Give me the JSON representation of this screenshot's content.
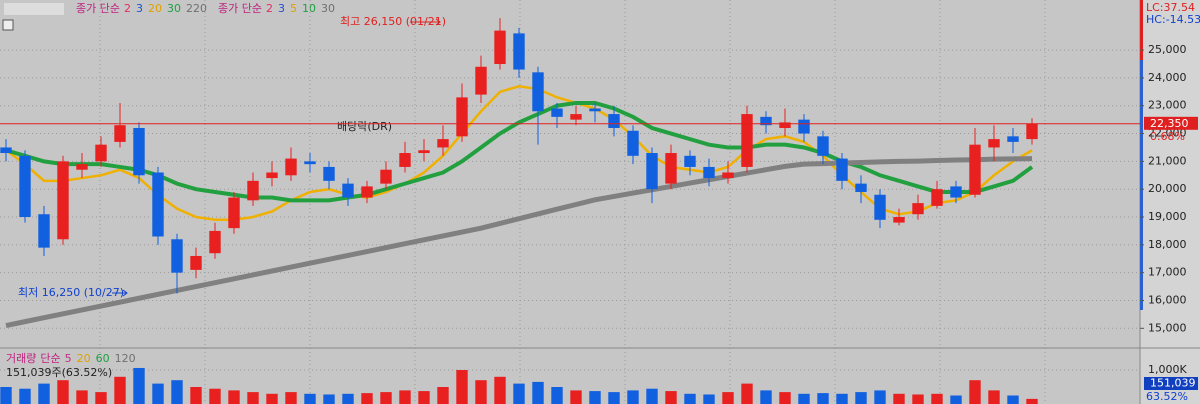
{
  "chart_data": {
    "type": "candlestick",
    "price_legend": {
      "label": "종가 단순",
      "items": [
        {
          "text": "2",
          "color": "#e03060"
        },
        {
          "text": "3",
          "color": "#2050d0"
        },
        {
          "text": "20",
          "color": "#e0a000"
        },
        {
          "text": "30",
          "color": "#20a040"
        },
        {
          "text": "220",
          "color": "#707070"
        }
      ]
    },
    "price_legend_2": {
      "label": "종가 단순",
      "items": [
        {
          "text": "2",
          "color": "#e03060"
        },
        {
          "text": "3",
          "color": "#2050d0"
        },
        {
          "text": "5",
          "color": "#e0a000"
        },
        {
          "text": "10",
          "color": "#20a040"
        },
        {
          "text": "30",
          "color": "#707070"
        }
      ]
    },
    "volume_legend": {
      "label": "거래량",
      "label2": "단순",
      "items": [
        {
          "text": "5",
          "color": "#c03080"
        },
        {
          "text": "20",
          "color": "#e0a000"
        },
        {
          "text": "60",
          "color": "#20a040"
        },
        {
          "text": "120",
          "color": "#707070"
        }
      ]
    },
    "volume_info": "151,039주(63.52%)",
    "annotations": {
      "high": "최고 26,150 (01/21)",
      "low": "최저 16,250 (10/27)",
      "dividend": "배당락(DR)"
    },
    "right_info": {
      "lc": "LC:37.54",
      "hc": "HC:-14.53",
      "change": "0.68%",
      "volume_pct": "63.52%"
    },
    "current_price": {
      "value": 22350,
      "label": "22,350"
    },
    "current_volume": {
      "value": 151.039,
      "label": "151,039"
    },
    "up_color": "#e82020",
    "down_color": "#1060e0",
    "open": [
      21500,
      21200,
      19100,
      18200,
      20700,
      21000,
      21700,
      22200,
      20600,
      18200,
      17100,
      17700,
      18600,
      19600,
      20400,
      20500,
      21000,
      20800,
      20200,
      19700,
      20200,
      20800,
      21300,
      21500,
      21900,
      23400,
      24500,
      25600,
      24200,
      22900,
      22500,
      22900,
      22700,
      22100,
      21300,
      20200,
      21200,
      20800,
      20400,
      20800,
      22600,
      22200,
      22500,
      21900,
      21100,
      20200,
      19800,
      18800,
      19100,
      19400,
      20100,
      19800,
      21500,
      21900,
      21800
    ],
    "high": [
      21800,
      21400,
      19400,
      21200,
      21300,
      21900,
      23100,
      22400,
      20800,
      18400,
      17900,
      18800,
      19900,
      20600,
      21000,
      21500,
      21300,
      21000,
      20400,
      20300,
      21000,
      21700,
      21800,
      22300,
      23800,
      24800,
      26150,
      25800,
      24400,
      23100,
      23000,
      23100,
      23000,
      22300,
      21500,
      21600,
      21400,
      21100,
      21000,
      23000,
      22800,
      22900,
      22700,
      22100,
      21300,
      20500,
      20000,
      19300,
      19800,
      20300,
      20300,
      22200,
      22300,
      22200,
      22550
    ],
    "low": [
      21000,
      18800,
      17600,
      18000,
      20400,
      20800,
      21500,
      20200,
      18000,
      16250,
      16800,
      17500,
      18400,
      19400,
      20100,
      20300,
      20600,
      20000,
      19400,
      19500,
      20000,
      20600,
      21000,
      21200,
      21700,
      23100,
      24300,
      24000,
      21600,
      22200,
      22300,
      22400,
      21900,
      20900,
      19500,
      20000,
      20500,
      20100,
      20200,
      20600,
      22000,
      21900,
      21700,
      20900,
      20000,
      19500,
      18600,
      18700,
      18900,
      19300,
      19500,
      19700,
      21000,
      21300,
      21600
    ],
    "close": [
      21300,
      19000,
      17900,
      21000,
      20900,
      21600,
      22300,
      20500,
      18300,
      17000,
      17600,
      18500,
      19700,
      20300,
      20600,
      21100,
      20900,
      20300,
      19700,
      20100,
      20700,
      21300,
      21400,
      21800,
      23300,
      24400,
      25700,
      24300,
      22800,
      22600,
      22700,
      22800,
      22200,
      21200,
      20000,
      21300,
      20800,
      20400,
      20600,
      22700,
      22300,
      22400,
      22000,
      21200,
      20300,
      19900,
      18900,
      19000,
      19500,
      20000,
      19700,
      21600,
      21800,
      21700,
      22350
    ],
    "ma_series": [
      {
        "color": "#f0b000",
        "width": 2.5,
        "values": [
          21400,
          20900,
          20300,
          20300,
          20400,
          20500,
          20700,
          20400,
          19800,
          19300,
          19000,
          18900,
          18900,
          19000,
          19200,
          19600,
          19900,
          20000,
          19800,
          19700,
          19900,
          20200,
          20600,
          21200,
          22000,
          22800,
          23500,
          23700,
          23600,
          23300,
          23100,
          22900,
          22500,
          21900,
          21200,
          20800,
          20700,
          20600,
          20800,
          21400,
          21800,
          21900,
          21700,
          21200,
          20500,
          19900,
          19300,
          19100,
          19200,
          19500,
          19600,
          19900,
          20500,
          21000,
          21400
        ]
      },
      {
        "color": "#22a040",
        "width": 4,
        "values": [
          21400,
          21200,
          21000,
          20900,
          20900,
          20900,
          20800,
          20700,
          20500,
          20200,
          20000,
          19900,
          19800,
          19700,
          19700,
          19600,
          19600,
          19600,
          19700,
          19800,
          20000,
          20200,
          20400,
          20600,
          21000,
          21500,
          22000,
          22400,
          22700,
          23000,
          23100,
          23100,
          22900,
          22600,
          22200,
          22000,
          21800,
          21600,
          21500,
          21500,
          21600,
          21600,
          21500,
          21300,
          21000,
          20800,
          20500,
          20300,
          20100,
          19900,
          19900,
          19900,
          20100,
          20300,
          20800
        ]
      },
      {
        "color": "#808080",
        "width": 5,
        "values": [
          15100,
          15240,
          15380,
          15520,
          15660,
          15800,
          15940,
          16080,
          16220,
          16360,
          16500,
          16640,
          16780,
          16920,
          17060,
          17200,
          17340,
          17480,
          17620,
          17760,
          17900,
          18040,
          18180,
          18320,
          18460,
          18600,
          18770,
          18940,
          19110,
          19280,
          19450,
          19620,
          19740,
          19860,
          19980,
          20100,
          20220,
          20340,
          20460,
          20580,
          20700,
          20820,
          20900,
          20920,
          20940,
          20960,
          20980,
          21000,
          21010,
          21030,
          21050,
          21060,
          21080,
          21090,
          21100
        ]
      }
    ],
    "volume": [
      500,
      450,
      600,
      700,
      400,
      350,
      800,
      1060,
      600,
      700,
      500,
      450,
      400,
      350,
      300,
      350,
      300,
      280,
      300,
      320,
      350,
      400,
      380,
      500,
      1000,
      700,
      800,
      600,
      650,
      500,
      400,
      380,
      350,
      400,
      450,
      380,
      300,
      280,
      350,
      600,
      400,
      350,
      300,
      320,
      300,
      350,
      400,
      300,
      280,
      300,
      250,
      700,
      400,
      250,
      151.039
    ],
    "ylim": [
      14400,
      26800
    ],
    "yticks": [
      {
        "value": 15000,
        "label": "15,000"
      },
      {
        "value": 16000,
        "label": "16,000"
      },
      {
        "value": 17000,
        "label": "17,000"
      },
      {
        "value": 18000,
        "label": "18,000"
      },
      {
        "value": 19000,
        "label": "19,000"
      },
      {
        "value": 20000,
        "label": "20,000"
      },
      {
        "value": 21000,
        "label": "21,000"
      },
      {
        "value": 22000,
        "label": "22,000"
      },
      {
        "value": 23000,
        "label": "23,000"
      },
      {
        "value": 24000,
        "label": "24,000"
      },
      {
        "value": 25000,
        "label": "25,000"
      }
    ],
    "vlim": [
      0,
      1530
    ],
    "vticks": [
      {
        "value": 1000,
        "label": "1,000K"
      }
    ],
    "grid": true
  }
}
